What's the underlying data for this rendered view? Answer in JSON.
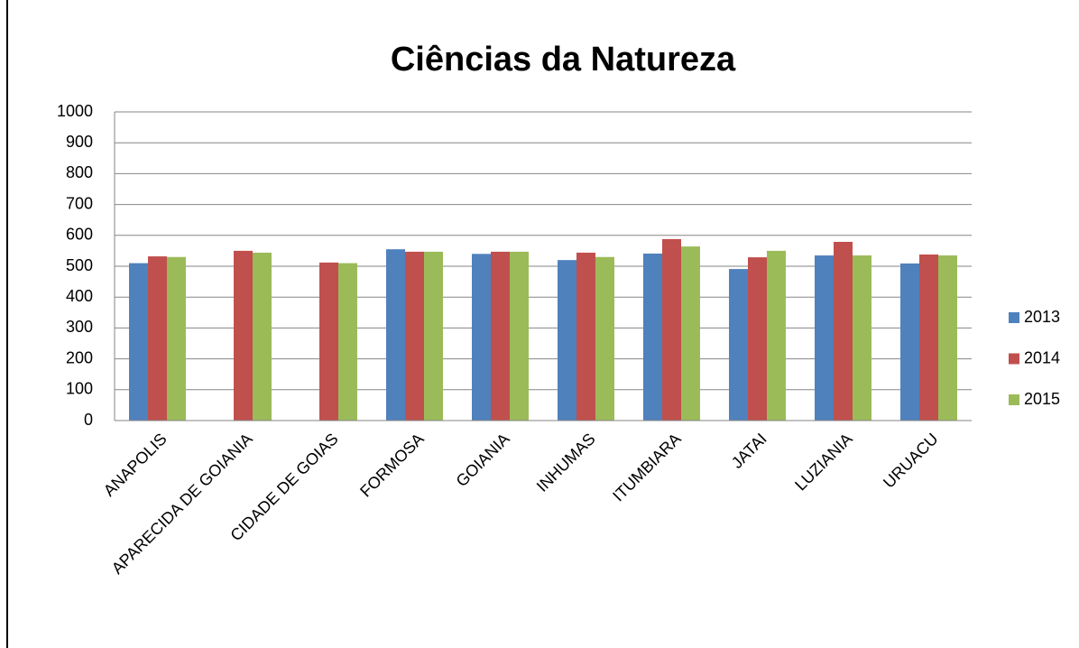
{
  "chart_data": {
    "type": "bar",
    "title": "Ciências da Natureza",
    "categories": [
      "ANAPOLIS",
      "APARECIDA DE GOIANIA",
      "CIDADE DE GOIAS",
      "FORMOSA",
      "GOIANIA",
      "INHUMAS",
      "ITUMBIARA",
      "JATAI",
      "LUZIANIA",
      "URUACU"
    ],
    "series": [
      {
        "name": "2013",
        "color": "#4f81bd",
        "values": [
          510,
          null,
          null,
          555,
          540,
          520,
          541,
          491,
          535,
          509
        ]
      },
      {
        "name": "2014",
        "color": "#c0504d",
        "values": [
          532,
          550,
          512,
          547,
          547,
          544,
          588,
          529,
          579,
          538
        ]
      },
      {
        "name": "2015",
        "color": "#9bbb59",
        "values": [
          530,
          544,
          510,
          547,
          547,
          530,
          564,
          550,
          535,
          535
        ]
      }
    ],
    "ylim": [
      0,
      1000
    ],
    "yticks": [
      0,
      100,
      200,
      300,
      400,
      500,
      600,
      700,
      800,
      900,
      1000
    ],
    "grid": true,
    "legend": "right"
  }
}
